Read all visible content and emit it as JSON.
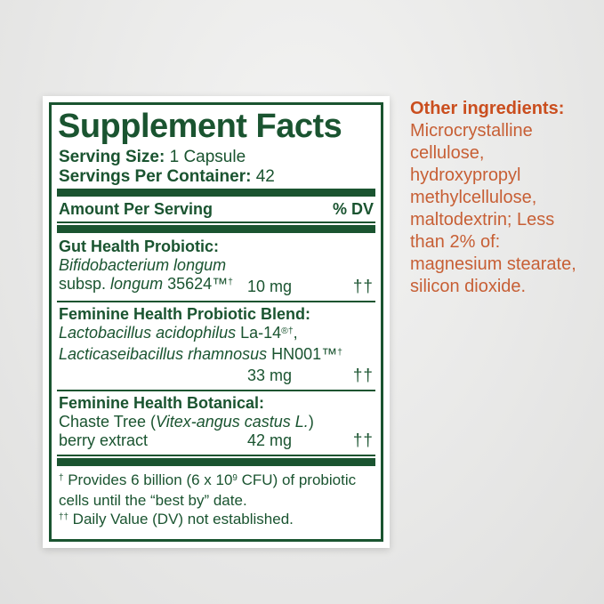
{
  "colors": {
    "green": "#1a5430",
    "orange_heading": "#ca4e1e",
    "orange_body": "#c75f35"
  },
  "supplement_facts": {
    "title": "Supplement Facts",
    "serving_size": {
      "label": "Serving Size:",
      "value": "1 Capsule"
    },
    "servings_per_container": {
      "label": "Servings Per Container:",
      "value": "42"
    },
    "column_headers": {
      "amount": "Amount Per Serving",
      "dv": "% DV"
    },
    "gut_probiotic": {
      "heading": "Gut Health Probiotic:",
      "species_italic": "Bifidobacterium longum",
      "strain_prefix": "subsp. ",
      "strain_italic": "longum",
      "strain_suffix": " 35624™",
      "strain_sup": "†",
      "amount": "10 mg",
      "dv": "††"
    },
    "feminine_blend": {
      "heading": "Feminine Health Probiotic Blend:",
      "species1_italic": "Lactobacillus acidophilus",
      "species1_plain": " La-14",
      "species1_sup": "®†",
      "species1_tail": ",",
      "species2_italic": "Lacticaseibacillus rhamnosus",
      "species2_plain": " HN001™",
      "species2_sup": "†",
      "amount": "33 mg",
      "dv": "††"
    },
    "botanical": {
      "heading": "Feminine Health Botanical:",
      "name_prefix": "Chaste Tree (",
      "name_italic": "Vitex-angus castus L.",
      "name_suffix": ")",
      "name_line2": "berry extract",
      "amount": "42 mg",
      "dv": "††"
    },
    "footnotes": {
      "fn1_sym": "†",
      "fn1_pre": " Provides 6 billion (6 x 10",
      "fn1_sup": "9",
      "fn1_post": " CFU) of probiotic cells until the “best by” date.",
      "fn2_sym": "††",
      "fn2_text": " Daily Value (DV) not established."
    }
  },
  "other_ingredients": {
    "heading": "Other ingredients:",
    "body": "Microcrystalline cellulose, hydroxypropyl methylcellulose, maltodextrin; Less than 2% of: magnesium stearate, silicon dioxide."
  }
}
